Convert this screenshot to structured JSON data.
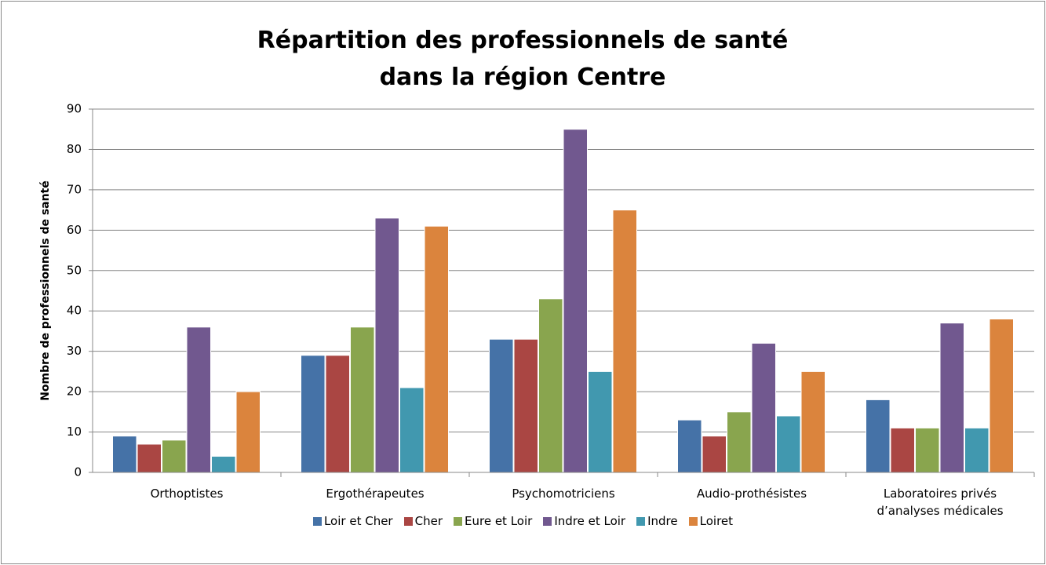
{
  "chart_data": {
    "type": "bar",
    "title": "Répartition des professionnels de santé dans la région Centre",
    "y_label": "Nombre de professionnels de santé",
    "categories": [
      "Orthoptistes",
      "Ergothérapeutes",
      "Psychomotriciens",
      "Audio-prothésistes",
      "Laboratoires privés d’analyses médicales"
    ],
    "series": [
      {
        "name": "Loir et Cher",
        "color": "#4572a7",
        "values": [
          9,
          29,
          33,
          13,
          18
        ]
      },
      {
        "name": "Cher",
        "color": "#aa4643",
        "values": [
          7,
          29,
          33,
          9,
          11
        ]
      },
      {
        "name": "Eure et Loir",
        "color": "#89a54e",
        "values": [
          8,
          36,
          43,
          15,
          11
        ]
      },
      {
        "name": "Indre et Loir",
        "color": "#71588f",
        "values": [
          36,
          63,
          85,
          32,
          37
        ]
      },
      {
        "name": "Indre",
        "color": "#4198af",
        "values": [
          4,
          21,
          25,
          14,
          11
        ]
      },
      {
        "name": "Loiret",
        "color": "#db843d",
        "values": [
          20,
          61,
          65,
          25,
          38
        ]
      }
    ],
    "ylim": [
      0,
      90
    ],
    "yticks": [
      0,
      10,
      20,
      30,
      40,
      50,
      60,
      70,
      80,
      90
    ],
    "grid": true,
    "legend": "bottom"
  }
}
